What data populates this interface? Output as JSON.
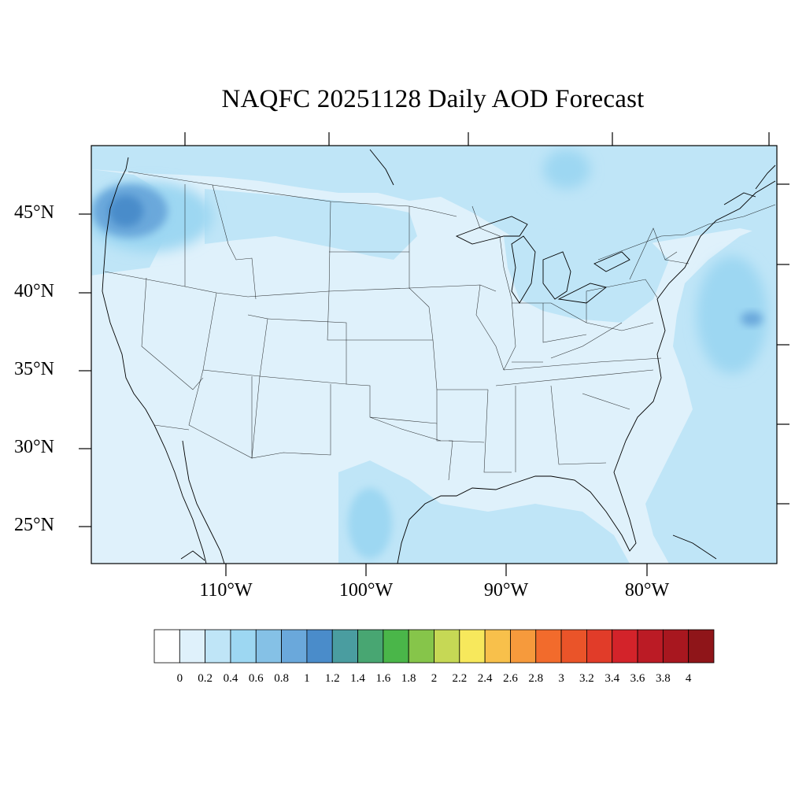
{
  "title": "NAQFC 20251128 Daily AOD Forecast",
  "map": {
    "region": "continental-united-states",
    "lat_labels": [
      "45°N",
      "40°N",
      "35°N",
      "30°N",
      "25°N"
    ],
    "lon_labels": [
      "110°W",
      "100°W",
      "90°W",
      "80°W"
    ],
    "colors": {
      "ocean_base": "#dff1fb",
      "land_base": "#dff1fb",
      "low_aod": "#bfe5f7",
      "mid_aod": "#9dd7f2",
      "high_aod": "#6aa8db",
      "peak_aod": "#4a8cca",
      "line": "#000000"
    }
  },
  "colorbar": {
    "labels": [
      "0",
      "0.2",
      "0.4",
      "0.6",
      "0.8",
      "1",
      "1.2",
      "1.4",
      "1.6",
      "1.8",
      "2",
      "2.2",
      "2.4",
      "2.6",
      "2.8",
      "3",
      "3.2",
      "3.4",
      "3.6",
      "3.8",
      "4"
    ],
    "colors": [
      "#ffffff",
      "#dff1fb",
      "#bfe5f7",
      "#9dd7f2",
      "#85c1e6",
      "#6aa8db",
      "#4a8cca",
      "#4a9da0",
      "#48a672",
      "#4ab649",
      "#86c54a",
      "#c6d855",
      "#f7e85c",
      "#f8c04b",
      "#f69a3c",
      "#f26b2c",
      "#ea5429",
      "#e13c29",
      "#d3232a",
      "#bb1b25",
      "#a8171f",
      "#8f1519"
    ]
  }
}
